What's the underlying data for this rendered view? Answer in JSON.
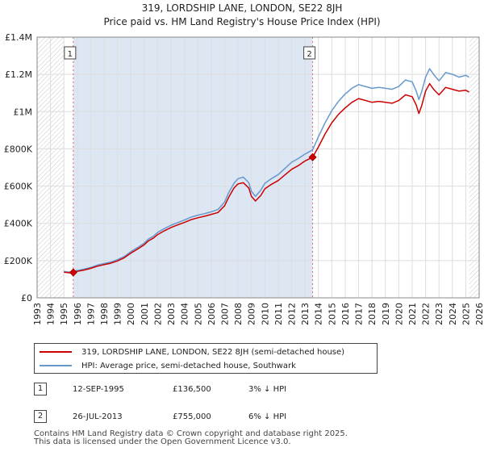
{
  "header": {
    "title_line1": "319, LORDSHIP LANE, LONDON, SE22 8JH",
    "title_line2": "Price paid vs. HM Land Registry's House Price Index (HPI)"
  },
  "colors": {
    "property_line": "#cc0000",
    "hpi_line": "#6699cc",
    "shade": "#dde6f3",
    "hatch": "#cccccc",
    "marker_vline": "#e06666",
    "grid": "#dddddd"
  },
  "chart_data": {
    "type": "line",
    "title": "319, LORDSHIP LANE, LONDON, SE22 8JH — Price paid vs. HM Land Registry's House Price Index (HPI)",
    "xlim": [
      1993,
      2026
    ],
    "ylim": [
      0,
      1400000
    ],
    "y_ticks": [
      0,
      200000,
      400000,
      600000,
      800000,
      1000000,
      1200000,
      1400000
    ],
    "y_tick_labels": [
      "£0",
      "£200K",
      "£400K",
      "£600K",
      "£800K",
      "£1M",
      "£1.2M",
      "£1.4M"
    ],
    "x_ticks": [
      1993,
      1994,
      1995,
      1996,
      1997,
      1998,
      1999,
      2000,
      2001,
      2002,
      2003,
      2004,
      2005,
      2006,
      2007,
      2008,
      2009,
      2010,
      2011,
      2012,
      2013,
      2014,
      2015,
      2016,
      2017,
      2018,
      2019,
      2020,
      2021,
      2022,
      2023,
      2024,
      2025,
      2026
    ],
    "x_tick_labels": [
      "1993",
      "1994",
      "1995",
      "1996",
      "1997",
      "1998",
      "1999",
      "2000",
      "2001",
      "2002",
      "2003",
      "2004",
      "2005",
      "2006",
      "2007",
      "2008",
      "2009",
      "2010",
      "2011",
      "2012",
      "2013",
      "2014",
      "2015",
      "2016",
      "2017",
      "2018",
      "2019",
      "2020",
      "2021",
      "2022",
      "2023",
      "2024",
      "2025",
      "2026"
    ],
    "data_range": [
      1995.0,
      2025.25
    ],
    "shaded_period": [
      1995.7,
      2013.57
    ],
    "series": [
      {
        "name": "319, LORDSHIP LANE, LONDON, SE22 8JH (semi-detached house)",
        "points": [
          [
            1995.0,
            138000
          ],
          [
            1995.5,
            134000
          ],
          [
            1995.7,
            136500
          ],
          [
            1996.0,
            142000
          ],
          [
            1996.5,
            149000
          ],
          [
            1997.0,
            158000
          ],
          [
            1997.5,
            170000
          ],
          [
            1998.0,
            178000
          ],
          [
            1998.5,
            186000
          ],
          [
            1999.0,
            198000
          ],
          [
            1999.5,
            215000
          ],
          [
            2000.0,
            240000
          ],
          [
            2000.5,
            262000
          ],
          [
            2001.0,
            285000
          ],
          [
            2001.3,
            305000
          ],
          [
            2001.7,
            322000
          ],
          [
            2002.0,
            340000
          ],
          [
            2002.5,
            360000
          ],
          [
            2003.0,
            378000
          ],
          [
            2003.5,
            392000
          ],
          [
            2004.0,
            405000
          ],
          [
            2004.5,
            420000
          ],
          [
            2005.0,
            430000
          ],
          [
            2005.5,
            438000
          ],
          [
            2006.0,
            448000
          ],
          [
            2006.5,
            458000
          ],
          [
            2007.0,
            495000
          ],
          [
            2007.3,
            540000
          ],
          [
            2007.7,
            590000
          ],
          [
            2008.0,
            612000
          ],
          [
            2008.4,
            618000
          ],
          [
            2008.8,
            590000
          ],
          [
            2009.0,
            545000
          ],
          [
            2009.3,
            520000
          ],
          [
            2009.7,
            550000
          ],
          [
            2010.0,
            585000
          ],
          [
            2010.5,
            610000
          ],
          [
            2011.0,
            630000
          ],
          [
            2011.5,
            660000
          ],
          [
            2012.0,
            690000
          ],
          [
            2012.5,
            710000
          ],
          [
            2013.0,
            735000
          ],
          [
            2013.57,
            755000
          ],
          [
            2014.0,
            810000
          ],
          [
            2014.5,
            880000
          ],
          [
            2015.0,
            940000
          ],
          [
            2015.5,
            985000
          ],
          [
            2016.0,
            1020000
          ],
          [
            2016.5,
            1050000
          ],
          [
            2017.0,
            1070000
          ],
          [
            2017.5,
            1060000
          ],
          [
            2018.0,
            1050000
          ],
          [
            2018.5,
            1055000
          ],
          [
            2019.0,
            1050000
          ],
          [
            2019.5,
            1045000
          ],
          [
            2020.0,
            1060000
          ],
          [
            2020.5,
            1090000
          ],
          [
            2021.0,
            1080000
          ],
          [
            2021.3,
            1035000
          ],
          [
            2021.5,
            990000
          ],
          [
            2021.7,
            1030000
          ],
          [
            2022.0,
            1110000
          ],
          [
            2022.3,
            1150000
          ],
          [
            2022.6,
            1120000
          ],
          [
            2023.0,
            1090000
          ],
          [
            2023.5,
            1130000
          ],
          [
            2024.0,
            1120000
          ],
          [
            2024.5,
            1110000
          ],
          [
            2025.0,
            1115000
          ],
          [
            2025.25,
            1105000
          ]
        ]
      },
      {
        "name": "HPI: Average price, semi-detached house, Southwark",
        "points": [
          [
            1995.0,
            142000
          ],
          [
            1995.5,
            138000
          ],
          [
            1995.7,
            141000
          ],
          [
            1996.0,
            147000
          ],
          [
            1996.5,
            154000
          ],
          [
            1997.0,
            163000
          ],
          [
            1997.5,
            176000
          ],
          [
            1998.0,
            184000
          ],
          [
            1998.5,
            192000
          ],
          [
            1999.0,
            205000
          ],
          [
            1999.5,
            222000
          ],
          [
            2000.0,
            248000
          ],
          [
            2000.5,
            270000
          ],
          [
            2001.0,
            294000
          ],
          [
            2001.3,
            315000
          ],
          [
            2001.7,
            332000
          ],
          [
            2002.0,
            352000
          ],
          [
            2002.5,
            372000
          ],
          [
            2003.0,
            390000
          ],
          [
            2003.5,
            404000
          ],
          [
            2004.0,
            418000
          ],
          [
            2004.5,
            434000
          ],
          [
            2005.0,
            444000
          ],
          [
            2005.5,
            452000
          ],
          [
            2006.0,
            462000
          ],
          [
            2006.5,
            474000
          ],
          [
            2007.0,
            515000
          ],
          [
            2007.3,
            565000
          ],
          [
            2007.7,
            615000
          ],
          [
            2008.0,
            640000
          ],
          [
            2008.4,
            648000
          ],
          [
            2008.8,
            618000
          ],
          [
            2009.0,
            572000
          ],
          [
            2009.3,
            545000
          ],
          [
            2009.7,
            578000
          ],
          [
            2010.0,
            615000
          ],
          [
            2010.5,
            640000
          ],
          [
            2011.0,
            662000
          ],
          [
            2011.5,
            695000
          ],
          [
            2012.0,
            728000
          ],
          [
            2012.5,
            748000
          ],
          [
            2013.0,
            772000
          ],
          [
            2013.57,
            795000
          ],
          [
            2014.0,
            865000
          ],
          [
            2014.5,
            940000
          ],
          [
            2015.0,
            1005000
          ],
          [
            2015.5,
            1055000
          ],
          [
            2016.0,
            1095000
          ],
          [
            2016.5,
            1125000
          ],
          [
            2017.0,
            1145000
          ],
          [
            2017.5,
            1135000
          ],
          [
            2018.0,
            1125000
          ],
          [
            2018.5,
            1130000
          ],
          [
            2019.0,
            1125000
          ],
          [
            2019.5,
            1120000
          ],
          [
            2020.0,
            1135000
          ],
          [
            2020.5,
            1170000
          ],
          [
            2021.0,
            1160000
          ],
          [
            2021.3,
            1110000
          ],
          [
            2021.5,
            1065000
          ],
          [
            2021.7,
            1105000
          ],
          [
            2022.0,
            1185000
          ],
          [
            2022.3,
            1230000
          ],
          [
            2022.6,
            1200000
          ],
          [
            2023.0,
            1165000
          ],
          [
            2023.5,
            1210000
          ],
          [
            2024.0,
            1200000
          ],
          [
            2024.5,
            1185000
          ],
          [
            2025.0,
            1195000
          ],
          [
            2025.25,
            1185000
          ]
        ]
      }
    ],
    "sales": [
      {
        "label": "1",
        "x": 1995.7,
        "price": 136500
      },
      {
        "label": "2",
        "x": 2013.57,
        "price": 755000
      }
    ]
  },
  "legend": {
    "property_label": "319, LORDSHIP LANE, LONDON, SE22 8JH (semi-detached house)",
    "hpi_label": "HPI: Average price, semi-detached house, Southwark"
  },
  "transactions": [
    {
      "num": "1",
      "date": "12-SEP-1995",
      "price": "£136,500",
      "hpi": "3% ↓ HPI"
    },
    {
      "num": "2",
      "date": "26-JUL-2013",
      "price": "£755,000",
      "hpi": "6% ↓ HPI"
    }
  ],
  "footer": {
    "line1": "Contains HM Land Registry data © Crown copyright and database right 2025.",
    "line2": "This data is licensed under the Open Government Licence v3.0."
  }
}
